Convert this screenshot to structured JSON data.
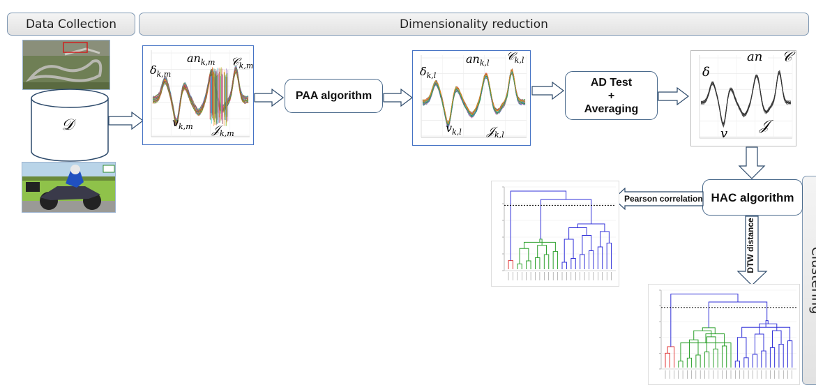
{
  "headers": {
    "data_collection": "Data Collection",
    "dimensionality_reduction": "Dimensionality reduction",
    "clustering": "Clustering"
  },
  "steps": {
    "paa": "PAA algorithm",
    "ad_test_line1": "AD Test",
    "ad_test_line2": "+",
    "ad_test_line3": "Averaging",
    "hac": "HAC algorithm"
  },
  "edges": {
    "pearson": "Pearson correlation",
    "dtw": "DTW distance"
  },
  "dataset_symbol": "𝒟",
  "panel1_labels": {
    "delta": "δ",
    "delta_sub": "k,m",
    "an": "an",
    "an_sub": "k,m",
    "c": "𝒞",
    "c_sub": "k,m",
    "v": "v",
    "v_sub": "k,m",
    "j": "𝒥",
    "j_sub": "k,m"
  },
  "panel2_labels": {
    "delta": "δ",
    "delta_sub": "k,l",
    "an": "an",
    "an_sub": "k,l",
    "c": "𝒞",
    "c_sub": "k,l",
    "v": "v",
    "v_sub": "k,l",
    "j": "𝒥",
    "j_sub": "k,l"
  },
  "panel3_labels": {
    "delta": "δ",
    "an": "an",
    "c": "𝒞",
    "v": "v",
    "j": "𝒥"
  },
  "colors": {
    "clusterRed": "#e03030",
    "clusterGreen": "#2ca02c",
    "clusterBlue": "#3030d8",
    "border": "#4472c4"
  }
}
